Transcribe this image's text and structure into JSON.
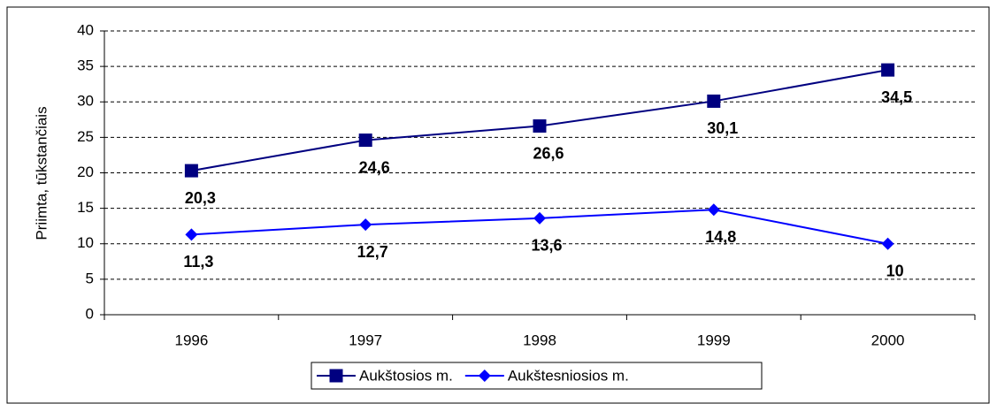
{
  "chart_data": {
    "type": "line",
    "y_label": "Priimta, tūkstančiais",
    "categories": [
      "1996",
      "1997",
      "1998",
      "1999",
      "2000"
    ],
    "series": [
      {
        "name": "Aukštosios m.",
        "color": "#000080",
        "marker": "square",
        "values": [
          20.3,
          24.6,
          26.6,
          30.1,
          34.5
        ],
        "value_labels": [
          "20,3",
          "24,6",
          "26,6",
          "30,1",
          "34,5"
        ]
      },
      {
        "name": "Aukštesniosios m.",
        "color": "#0000ff",
        "marker": "diamond",
        "values": [
          11.3,
          12.7,
          13.6,
          14.8,
          10
        ],
        "value_labels": [
          "11,3",
          "12,7",
          "13,6",
          "14,8",
          "10"
        ]
      }
    ],
    "ylim": [
      0,
      40
    ],
    "yticks": [
      0,
      5,
      10,
      15,
      20,
      25,
      30,
      35,
      40
    ],
    "grid": true,
    "legend": "bottom"
  }
}
